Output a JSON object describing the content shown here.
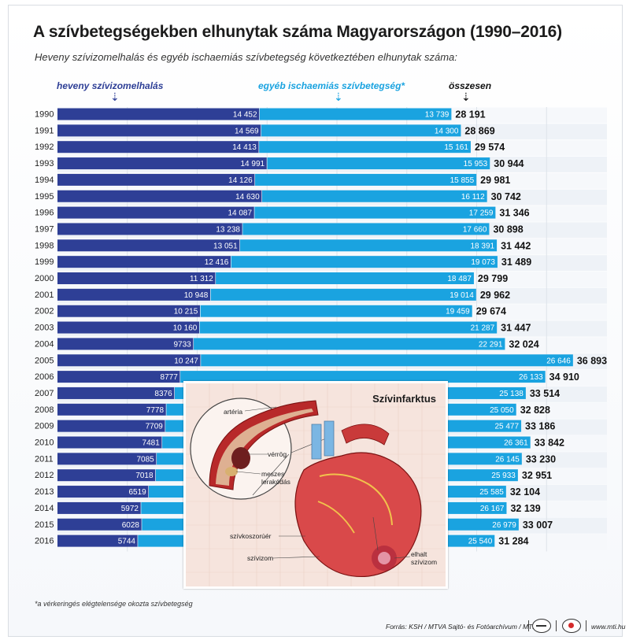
{
  "title": "A szívbetegségekben elhunytak száma Magyarországon (1990–2016)",
  "subtitle": "Heveny szívizomelhalás és egyéb ischaemiás szívbetegség következtében elhunytak száma:",
  "legend": {
    "series1": "heveny szívizomelhalás",
    "series2": "egyéb ischaemiás szívbetegség*",
    "total": "összesen"
  },
  "colors": {
    "series1": "#2e3f96",
    "series2": "#1aa3e0",
    "total_text": "#111111"
  },
  "chart_data": {
    "type": "bar",
    "orientation": "horizontal",
    "stacked": true,
    "categories": [
      "1990",
      "1991",
      "1992",
      "1993",
      "1994",
      "1995",
      "1996",
      "1997",
      "1998",
      "1999",
      "2000",
      "2001",
      "2002",
      "2003",
      "2004",
      "2005",
      "2006",
      "2007",
      "2008",
      "2009",
      "2010",
      "2011",
      "2012",
      "2013",
      "2014",
      "2015",
      "2016"
    ],
    "series": [
      {
        "name": "heveny szívizomelhalás",
        "values": [
          14452,
          14569,
          14413,
          14991,
          14126,
          14630,
          14087,
          13238,
          13051,
          12416,
          11312,
          10948,
          10215,
          10160,
          9733,
          10247,
          8777,
          8376,
          7778,
          7709,
          7481,
          7085,
          7018,
          6519,
          5972,
          6028,
          5744
        ],
        "labels": [
          "14 452",
          "14 569",
          "14 413",
          "14 991",
          "14 126",
          "14 630",
          "14 087",
          "13 238",
          "13 051",
          "12 416",
          "11 312",
          "10 948",
          "10 215",
          "10 160",
          "9733",
          "10 247",
          "8777",
          "8376",
          "7778",
          "7709",
          "7481",
          "7085",
          "7018",
          "6519",
          "5972",
          "6028",
          "5744"
        ]
      },
      {
        "name": "egyéb ischaemiás szívbetegség*",
        "values": [
          13739,
          14300,
          15161,
          15953,
          15855,
          16112,
          17259,
          17660,
          18391,
          19073,
          18487,
          19014,
          19459,
          21287,
          22291,
          26646,
          26133,
          25138,
          25050,
          25477,
          26361,
          26145,
          25933,
          25585,
          26167,
          26979,
          25540
        ],
        "labels": [
          "13 739",
          "14 300",
          "15 161",
          "15 953",
          "15 855",
          "16 112",
          "17 259",
          "17 660",
          "18 391",
          "19 073",
          "18 487",
          "19 014",
          "19 459",
          "21 287",
          "22 291",
          "26 646",
          "26 133",
          "25 138",
          "25 050",
          "25 477",
          "26 361",
          "26 145",
          "25 933",
          "25 585",
          "26 167",
          "26 979",
          "25 540"
        ]
      }
    ],
    "totals": [
      28191,
      28869,
      29574,
      30944,
      29981,
      30742,
      31346,
      30898,
      31442,
      31489,
      29799,
      29962,
      29674,
      31447,
      32024,
      36893,
      34910,
      33514,
      32828,
      33186,
      33842,
      33230,
      32951,
      32104,
      32139,
      33007,
      31284
    ],
    "total_labels": [
      "28 191",
      "28 869",
      "29 574",
      "30 944",
      "29 981",
      "30 742",
      "31 346",
      "30 898",
      "31 442",
      "31 489",
      "29 799",
      "29 962",
      "29 674",
      "31 447",
      "32 024",
      "36 893",
      "34 910",
      "33 514",
      "32 828",
      "33 186",
      "33 842",
      "33 230",
      "32 951",
      "32 104",
      "32 139",
      "33 007",
      "31 284"
    ],
    "grid": true,
    "legend_position": "top"
  },
  "inset": {
    "title": "Szívinfarktus",
    "labels": {
      "arteria": "artéria",
      "vérrög": "vérrög",
      "meszes": "meszes\nlerakódás",
      "koszoru": "szívkoszorúér",
      "szivizom": "szívizom",
      "elhalt": "elhalt\nszívizom"
    }
  },
  "footnote": "*a vérkeringés elégtelensége okozta szívbetegség",
  "source": "Forrás: KSH / MTVA Sajtó- és Fotóarchívum / MTI",
  "website": "www.mti.hu"
}
